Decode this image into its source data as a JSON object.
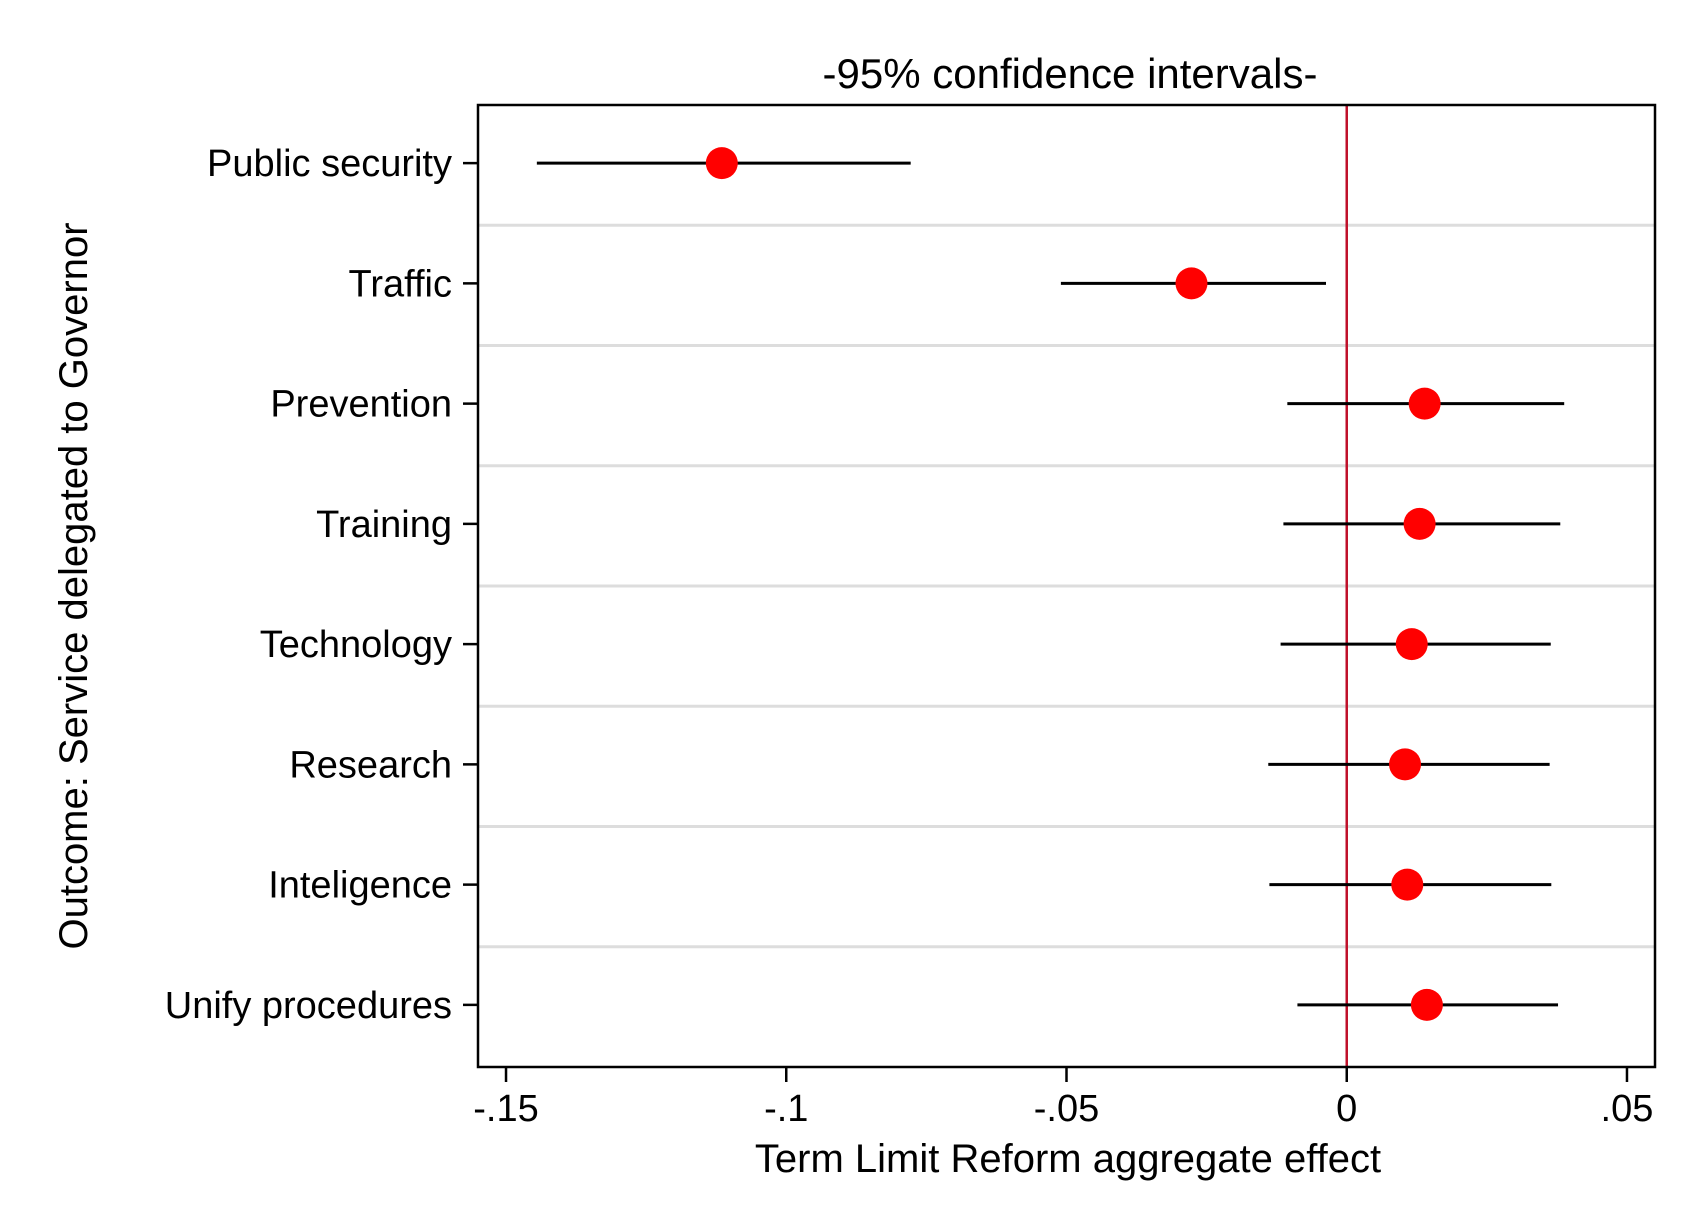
{
  "chart_data": {
    "type": "scatter",
    "subtype": "coefficient-plot",
    "title": "-95% confidence intervals-",
    "xlabel": "Term Limit Reform aggregate effect",
    "ylabel": "Outcome: Service delegated to Governor",
    "xlim": [
      -0.155,
      0.055
    ],
    "xticks": [
      -0.15,
      -0.1,
      -0.05,
      0,
      0.05
    ],
    "xtick_labels": [
      "-.15",
      "-.1",
      "-.05",
      "0",
      ".05"
    ],
    "reference_line_x": 0,
    "grid": "horizontal separators between categories",
    "colors": {
      "point": "#ff0000",
      "interval": "#000000",
      "reference_line": "#c0102a",
      "separator": "#dddddd"
    },
    "categories": [
      "Public security",
      "Traffic",
      "Prevention",
      "Training",
      "Technology",
      "Research",
      "Inteligence",
      "Unify procedures"
    ],
    "estimates": [
      -0.1115,
      -0.0277,
      0.0139,
      0.013,
      0.0116,
      0.0104,
      0.0108,
      0.0143
    ],
    "ci_low": [
      -0.1445,
      -0.051,
      -0.0106,
      -0.0113,
      -0.0118,
      -0.014,
      -0.0138,
      -0.0088
    ],
    "ci_high": [
      -0.0778,
      -0.0037,
      0.0388,
      0.0381,
      0.0364,
      0.0362,
      0.0365,
      0.0377
    ]
  }
}
